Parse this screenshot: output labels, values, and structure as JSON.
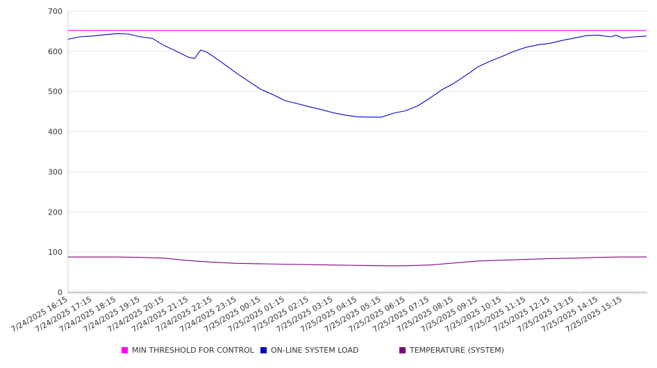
{
  "chart_data": {
    "type": "line",
    "title": "",
    "xlabel": "",
    "ylabel": "",
    "ylim": [
      0,
      700
    ],
    "y_ticks": [
      "0",
      "100",
      "200",
      "300",
      "400",
      "500",
      "600",
      "700"
    ],
    "grid": true,
    "legend_placement": "bottom",
    "categories": [
      "7/24/2025 16:15",
      "7/24/2025 17:15",
      "7/24/2025 18:15",
      "7/24/2025 19:15",
      "7/24/2025 20:15",
      "7/24/2025 21:15",
      "7/24/2025 22:15",
      "7/24/2025 23:15",
      "7/25/2025 00:15",
      "7/25/2025 01:15",
      "7/25/2025 02:15",
      "7/25/2025 03:15",
      "7/25/2025 04:15",
      "7/25/2025 05:15",
      "7/25/2025 06:15",
      "7/25/2025 07:15",
      "7/25/2025 08:15",
      "7/25/2025 09:15",
      "7/25/2025 10:15",
      "7/25/2025 11:15",
      "7/25/2025 12:15",
      "7/25/2025 13:15",
      "7/25/2025 14:15",
      "7/25/2025 15:15"
    ],
    "x_range_hours": [
      0,
      24
    ],
    "series": [
      {
        "name": "MIN THRESHOLD FOR CONTROL",
        "color": "#ff00ff",
        "points": [
          [
            0,
            652
          ],
          [
            24,
            652
          ]
        ]
      },
      {
        "name": "ON-LINE SYSTEM LOAD",
        "color": "#0000cc",
        "points": [
          [
            0,
            630
          ],
          [
            0.5,
            636
          ],
          [
            1,
            638
          ],
          [
            1.5,
            641
          ],
          [
            2,
            644
          ],
          [
            2.5,
            643
          ],
          [
            3,
            636
          ],
          [
            3.5,
            632
          ],
          [
            4,
            614
          ],
          [
            4.5,
            600
          ],
          [
            5,
            585
          ],
          [
            5.25,
            582
          ],
          [
            5.5,
            603
          ],
          [
            5.75,
            598
          ],
          [
            6,
            588
          ],
          [
            6.5,
            567
          ],
          [
            7,
            545
          ],
          [
            7.5,
            525
          ],
          [
            8,
            505
          ],
          [
            8.5,
            492
          ],
          [
            9,
            477
          ],
          [
            9.5,
            470
          ],
          [
            10,
            462
          ],
          [
            10.5,
            455
          ],
          [
            11,
            447
          ],
          [
            11.5,
            441
          ],
          [
            12,
            437
          ],
          [
            12.5,
            436
          ],
          [
            13,
            436
          ],
          [
            13.5,
            446
          ],
          [
            14,
            452
          ],
          [
            14.5,
            464
          ],
          [
            15,
            483
          ],
          [
            15.5,
            504
          ],
          [
            16,
            520
          ],
          [
            16.5,
            540
          ],
          [
            17,
            561
          ],
          [
            17.5,
            575
          ],
          [
            18,
            587
          ],
          [
            18.5,
            600
          ],
          [
            19,
            610
          ],
          [
            19.5,
            616
          ],
          [
            20,
            620
          ],
          [
            20.5,
            627
          ],
          [
            21,
            633
          ],
          [
            21.5,
            639
          ],
          [
            22,
            640
          ],
          [
            22.5,
            636
          ],
          [
            22.75,
            640
          ],
          [
            23,
            633
          ],
          [
            23.5,
            636
          ],
          [
            24,
            638
          ]
        ]
      },
      {
        "name": "TEMPERATURE (SYSTEM)",
        "color": "#800080",
        "points": [
          [
            0,
            88
          ],
          [
            1,
            88
          ],
          [
            2,
            88
          ],
          [
            3,
            87
          ],
          [
            4,
            85
          ],
          [
            5,
            79
          ],
          [
            6,
            75
          ],
          [
            7,
            72
          ],
          [
            8,
            71
          ],
          [
            9,
            70
          ],
          [
            10,
            69
          ],
          [
            11,
            68
          ],
          [
            12,
            67
          ],
          [
            13,
            66
          ],
          [
            14,
            66
          ],
          [
            15,
            68
          ],
          [
            16,
            73
          ],
          [
            17,
            78
          ],
          [
            18,
            80
          ],
          [
            19,
            82
          ],
          [
            20,
            84
          ],
          [
            21,
            85
          ],
          [
            22,
            87
          ],
          [
            23,
            88
          ],
          [
            24,
            88
          ]
        ]
      }
    ]
  }
}
